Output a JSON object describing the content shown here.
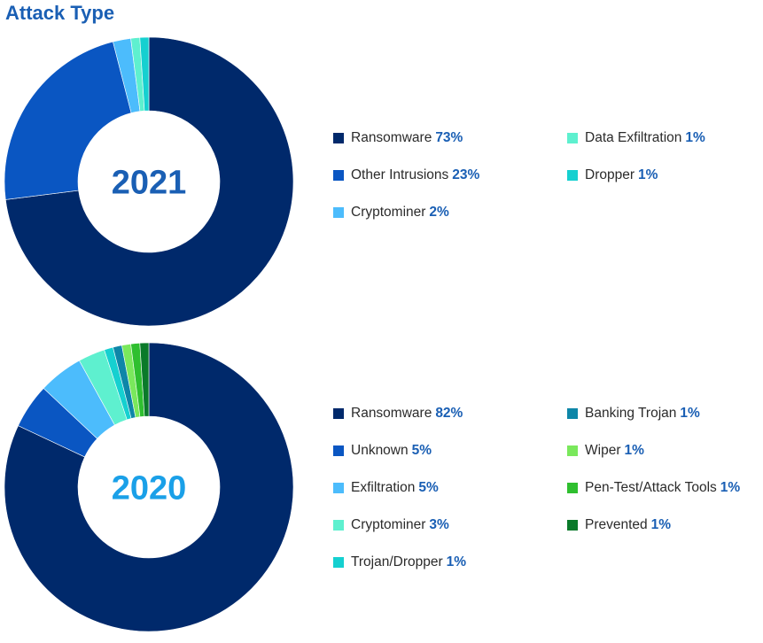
{
  "title": "Attack Type",
  "chart_data": [
    {
      "type": "pie",
      "center_label": "2021",
      "center_color": "#1a5fb4",
      "slices": [
        {
          "label": "Ransomware",
          "value": 73,
          "display": "73%",
          "color": "#00296b"
        },
        {
          "label": "Other Intrusions",
          "value": 23,
          "display": "23%",
          "color": "#0a56c2"
        },
        {
          "label": "Cryptominer",
          "value": 2,
          "display": "2%",
          "color": "#4cbcfc"
        },
        {
          "label": "Data Exfiltration",
          "value": 1,
          "display": "1%",
          "color": "#5ef0cf"
        },
        {
          "label": "Dropper",
          "value": 1,
          "display": "1%",
          "color": "#15d0d0"
        }
      ]
    },
    {
      "type": "pie",
      "center_label": "2020",
      "center_color": "#1aa0e8",
      "slices": [
        {
          "label": "Ransomware",
          "value": 82,
          "display": "82%",
          "color": "#00296b"
        },
        {
          "label": "Unknown",
          "value": 5,
          "display": "5%",
          "color": "#0a56c2"
        },
        {
          "label": "Exfiltration",
          "value": 5,
          "display": "5%",
          "color": "#4cbcfc"
        },
        {
          "label": "Cryptominer",
          "value": 3,
          "display": "3%",
          "color": "#5ef0cf"
        },
        {
          "label": "Trojan/Dropper",
          "value": 1,
          "display": "1%",
          "color": "#15d0d0"
        },
        {
          "label": "Banking Trojan",
          "value": 1,
          "display": "1%",
          "color": "#0e86a8"
        },
        {
          "label": "Wiper",
          "value": 1,
          "display": "1%",
          "color": "#7ae85c"
        },
        {
          "label": "Pen-Test/Attack Tools",
          "value": 1,
          "display": "1%",
          "color": "#2fbf2f"
        },
        {
          "label": "Prevented",
          "value": 1,
          "display": "1%",
          "color": "#0a7a2a"
        }
      ]
    }
  ]
}
